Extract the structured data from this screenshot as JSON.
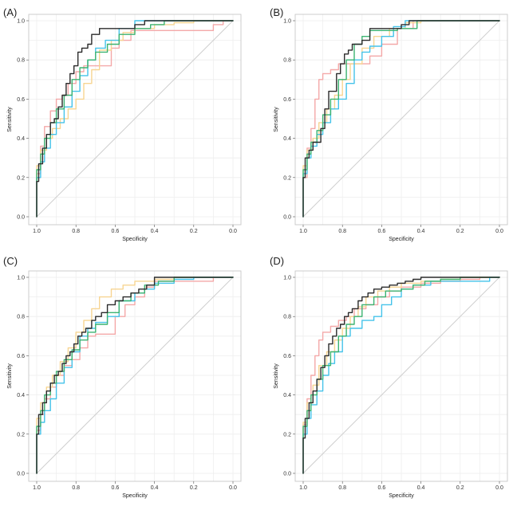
{
  "figure": {
    "colors": {
      "black": "#2b2b2b",
      "green": "#3cb371",
      "cyan": "#45c3ea",
      "pink": "#f4a8a8",
      "yellow": "#f7d592",
      "diagonal": "#cfcfcf"
    }
  },
  "chart_data": [
    {
      "panel_label": "(A)",
      "type": "line",
      "xlabel": "Specificity",
      "ylabel": "Sensitivity",
      "xlim": [
        1.0,
        0.0
      ],
      "ylim": [
        0.0,
        1.0
      ],
      "x_ticks": [
        "1.0",
        "0.8",
        "0.6",
        "0.4",
        "0.2",
        "0.0"
      ],
      "y_ticks": [
        "0.0",
        "0.2",
        "0.4",
        "0.6",
        "0.8",
        "1.0"
      ],
      "grid": true,
      "series": [
        {
          "name": "pink",
          "color": "#f4a8a8",
          "specificity": [
            1.0,
            0.98,
            0.96,
            0.93,
            0.9,
            0.87,
            0.84,
            0.8,
            0.76,
            0.72,
            0.68,
            0.62,
            0.58,
            0.52,
            0.4,
            0.3,
            0.2,
            0.1,
            0.05,
            0.0
          ],
          "sensitivity": [
            0.0,
            0.22,
            0.36,
            0.46,
            0.54,
            0.6,
            0.62,
            0.68,
            0.74,
            0.77,
            0.77,
            0.77,
            0.86,
            0.9,
            0.95,
            0.95,
            0.95,
            0.95,
            0.98,
            1.0
          ]
        },
        {
          "name": "yellow",
          "color": "#f7d592",
          "specificity": [
            1.0,
            0.98,
            0.95,
            0.92,
            0.88,
            0.84,
            0.8,
            0.76,
            0.72,
            0.68,
            0.62,
            0.56,
            0.5,
            0.4,
            0.3,
            0.2,
            0.1,
            0.0
          ],
          "sensitivity": [
            0.0,
            0.26,
            0.34,
            0.4,
            0.45,
            0.5,
            0.55,
            0.6,
            0.68,
            0.75,
            0.85,
            0.9,
            0.94,
            0.96,
            0.98,
            0.99,
            1.0,
            1.0
          ]
        },
        {
          "name": "cyan",
          "color": "#45c3ea",
          "specificity": [
            1.0,
            0.98,
            0.96,
            0.93,
            0.9,
            0.86,
            0.82,
            0.78,
            0.74,
            0.7,
            0.65,
            0.58,
            0.5,
            0.45,
            0.4,
            0.3,
            0.2,
            0.1,
            0.0
          ],
          "sensitivity": [
            0.0,
            0.2,
            0.28,
            0.35,
            0.42,
            0.48,
            0.56,
            0.64,
            0.72,
            0.8,
            0.86,
            0.9,
            0.96,
            1.0,
            1.0,
            1.0,
            1.0,
            1.0,
            1.0
          ]
        },
        {
          "name": "green",
          "color": "#3cb371",
          "specificity": [
            1.0,
            0.98,
            0.96,
            0.93,
            0.9,
            0.86,
            0.82,
            0.78,
            0.74,
            0.7,
            0.64,
            0.58,
            0.5,
            0.42,
            0.35,
            0.25,
            0.1,
            0.0
          ],
          "sensitivity": [
            0.0,
            0.24,
            0.32,
            0.4,
            0.48,
            0.55,
            0.62,
            0.7,
            0.76,
            0.8,
            0.84,
            0.88,
            0.93,
            0.96,
            0.98,
            1.0,
            1.0,
            1.0
          ]
        },
        {
          "name": "black",
          "color": "#2b2b2b",
          "specificity": [
            1.0,
            0.99,
            0.97,
            0.95,
            0.93,
            0.91,
            0.89,
            0.87,
            0.85,
            0.83,
            0.81,
            0.79,
            0.77,
            0.74,
            0.72,
            0.68,
            0.66,
            0.64,
            0.6,
            0.56,
            0.52,
            0.5,
            0.45,
            0.4,
            0.35,
            0.2,
            0.1,
            0.0
          ],
          "sensitivity": [
            0.0,
            0.18,
            0.27,
            0.35,
            0.42,
            0.48,
            0.5,
            0.56,
            0.62,
            0.68,
            0.73,
            0.77,
            0.84,
            0.86,
            0.88,
            0.93,
            0.96,
            0.96,
            0.96,
            0.96,
            0.96,
            0.96,
            0.98,
            1.0,
            1.0,
            1.0,
            1.0,
            1.0
          ]
        }
      ]
    },
    {
      "panel_label": "(B)",
      "type": "line",
      "xlabel": "Specificity",
      "ylabel": "Sensitivity",
      "xlim": [
        1.0,
        0.0
      ],
      "ylim": [
        0.0,
        1.0
      ],
      "x_ticks": [
        "1.0",
        "0.8",
        "0.6",
        "0.4",
        "0.2",
        "0.0"
      ],
      "y_ticks": [
        "0.0",
        "0.2",
        "0.4",
        "0.6",
        "0.8",
        "1.0"
      ],
      "grid": true,
      "series": [
        {
          "name": "pink",
          "color": "#f4a8a8",
          "specificity": [
            1.0,
            0.98,
            0.96,
            0.94,
            0.92,
            0.9,
            0.86,
            0.82,
            0.78,
            0.72,
            0.66,
            0.6,
            0.52,
            0.44,
            0.4,
            0.3,
            0.2,
            0.0
          ],
          "sensitivity": [
            0.0,
            0.2,
            0.35,
            0.45,
            0.6,
            0.7,
            0.73,
            0.75,
            0.78,
            0.78,
            0.78,
            0.82,
            0.88,
            0.96,
            1.0,
            1.0,
            1.0,
            1.0
          ]
        },
        {
          "name": "yellow",
          "color": "#f7d592",
          "specificity": [
            1.0,
            0.98,
            0.95,
            0.92,
            0.88,
            0.84,
            0.8,
            0.76,
            0.7,
            0.64,
            0.56,
            0.48,
            0.4,
            0.3,
            0.2,
            0.0
          ],
          "sensitivity": [
            0.0,
            0.26,
            0.34,
            0.4,
            0.48,
            0.55,
            0.62,
            0.7,
            0.78,
            0.86,
            0.92,
            0.96,
            0.99,
            1.0,
            1.0,
            1.0
          ]
        },
        {
          "name": "cyan",
          "color": "#45c3ea",
          "specificity": [
            1.0,
            0.98,
            0.96,
            0.93,
            0.9,
            0.86,
            0.82,
            0.78,
            0.74,
            0.7,
            0.66,
            0.6,
            0.54,
            0.48,
            0.44,
            0.35,
            0.2,
            0.0
          ],
          "sensitivity": [
            0.0,
            0.22,
            0.3,
            0.36,
            0.42,
            0.48,
            0.55,
            0.6,
            0.68,
            0.8,
            0.84,
            0.87,
            0.92,
            0.97,
            1.0,
            1.0,
            1.0,
            1.0
          ]
        },
        {
          "name": "green",
          "color": "#3cb371",
          "specificity": [
            1.0,
            0.98,
            0.96,
            0.93,
            0.9,
            0.86,
            0.82,
            0.78,
            0.74,
            0.7,
            0.66,
            0.6,
            0.52,
            0.42,
            0.3,
            0.2,
            0.0
          ],
          "sensitivity": [
            0.0,
            0.24,
            0.32,
            0.38,
            0.44,
            0.52,
            0.6,
            0.7,
            0.8,
            0.88,
            0.92,
            0.95,
            0.95,
            0.96,
            1.0,
            1.0,
            1.0
          ]
        },
        {
          "name": "black",
          "color": "#2b2b2b",
          "specificity": [
            1.0,
            0.99,
            0.97,
            0.95,
            0.93,
            0.91,
            0.89,
            0.87,
            0.85,
            0.83,
            0.81,
            0.79,
            0.77,
            0.75,
            0.73,
            0.7,
            0.66,
            0.62,
            0.58,
            0.54,
            0.5,
            0.46,
            0.4,
            0.3,
            0.2,
            0.0
          ],
          "sensitivity": [
            0.0,
            0.2,
            0.3,
            0.34,
            0.38,
            0.38,
            0.45,
            0.55,
            0.64,
            0.64,
            0.73,
            0.78,
            0.83,
            0.85,
            0.88,
            0.88,
            0.9,
            0.96,
            0.96,
            0.96,
            0.96,
            0.98,
            1.0,
            1.0,
            1.0,
            1.0
          ]
        }
      ]
    },
    {
      "panel_label": "(C)",
      "type": "line",
      "xlabel": "Specificity",
      "ylabel": "Sensitivity",
      "xlim": [
        1.0,
        0.0
      ],
      "ylim": [
        0.0,
        1.0
      ],
      "x_ticks": [
        "1.0",
        "0.8",
        "0.6",
        "0.4",
        "0.2",
        "0.0"
      ],
      "y_ticks": [
        "0.0",
        "0.2",
        "0.4",
        "0.6",
        "0.8",
        "1.0"
      ],
      "grid": true,
      "series": [
        {
          "name": "pink",
          "color": "#f4a8a8",
          "specificity": [
            1.0,
            0.98,
            0.96,
            0.93,
            0.9,
            0.86,
            0.82,
            0.78,
            0.74,
            0.7,
            0.66,
            0.6,
            0.55,
            0.5,
            0.45,
            0.4,
            0.36,
            0.3,
            0.2,
            0.1,
            0.05,
            0.0
          ],
          "sensitivity": [
            0.0,
            0.22,
            0.3,
            0.38,
            0.44,
            0.5,
            0.55,
            0.58,
            0.64,
            0.7,
            0.71,
            0.71,
            0.8,
            0.86,
            0.9,
            0.95,
            0.98,
            0.98,
            0.98,
            0.98,
            1.0,
            1.0
          ]
        },
        {
          "name": "yellow",
          "color": "#f7d592",
          "specificity": [
            1.0,
            0.98,
            0.95,
            0.92,
            0.88,
            0.84,
            0.8,
            0.76,
            0.72,
            0.68,
            0.62,
            0.56,
            0.5,
            0.4,
            0.3,
            0.2,
            0.1,
            0.0
          ],
          "sensitivity": [
            0.0,
            0.28,
            0.36,
            0.44,
            0.5,
            0.57,
            0.64,
            0.72,
            0.78,
            0.84,
            0.9,
            0.94,
            0.96,
            0.98,
            0.99,
            1.0,
            1.0,
            1.0
          ]
        },
        {
          "name": "cyan",
          "color": "#45c3ea",
          "specificity": [
            1.0,
            0.98,
            0.96,
            0.93,
            0.9,
            0.86,
            0.82,
            0.78,
            0.74,
            0.7,
            0.64,
            0.58,
            0.5,
            0.45,
            0.4,
            0.3,
            0.2,
            0.1,
            0.0
          ],
          "sensitivity": [
            0.0,
            0.2,
            0.26,
            0.32,
            0.38,
            0.46,
            0.54,
            0.62,
            0.7,
            0.74,
            0.77,
            0.8,
            0.88,
            0.92,
            0.94,
            0.97,
            0.99,
            1.0,
            1.0
          ]
        },
        {
          "name": "green",
          "color": "#3cb371",
          "specificity": [
            1.0,
            0.98,
            0.96,
            0.93,
            0.9,
            0.86,
            0.82,
            0.78,
            0.74,
            0.7,
            0.64,
            0.58,
            0.52,
            0.45,
            0.38,
            0.3,
            0.2,
            0.1,
            0.0
          ],
          "sensitivity": [
            0.0,
            0.24,
            0.32,
            0.4,
            0.46,
            0.52,
            0.58,
            0.63,
            0.68,
            0.72,
            0.76,
            0.82,
            0.88,
            0.92,
            0.96,
            0.98,
            1.0,
            1.0,
            1.0
          ]
        },
        {
          "name": "black",
          "color": "#2b2b2b",
          "specificity": [
            1.0,
            0.99,
            0.97,
            0.95,
            0.93,
            0.91,
            0.89,
            0.87,
            0.85,
            0.83,
            0.81,
            0.79,
            0.77,
            0.75,
            0.72,
            0.7,
            0.67,
            0.64,
            0.6,
            0.56,
            0.52,
            0.48,
            0.44,
            0.4,
            0.36,
            0.3,
            0.2,
            0.1,
            0.0
          ],
          "sensitivity": [
            0.0,
            0.2,
            0.3,
            0.36,
            0.42,
            0.46,
            0.5,
            0.52,
            0.56,
            0.6,
            0.62,
            0.66,
            0.7,
            0.72,
            0.74,
            0.78,
            0.8,
            0.82,
            0.86,
            0.88,
            0.9,
            0.92,
            0.94,
            0.96,
            1.0,
            1.0,
            1.0,
            1.0,
            1.0
          ]
        }
      ]
    },
    {
      "panel_label": "(D)",
      "type": "line",
      "xlabel": "Specificity",
      "ylabel": "Sensitivity",
      "xlim": [
        1.0,
        0.0
      ],
      "ylim": [
        0.0,
        1.0
      ],
      "x_ticks": [
        "1.0",
        "0.8",
        "0.6",
        "0.4",
        "0.2",
        "0.0"
      ],
      "y_ticks": [
        "0.0",
        "0.2",
        "0.4",
        "0.6",
        "0.8",
        "1.0"
      ],
      "grid": true,
      "series": [
        {
          "name": "pink",
          "color": "#f4a8a8",
          "specificity": [
            1.0,
            0.98,
            0.96,
            0.94,
            0.92,
            0.9,
            0.86,
            0.82,
            0.78,
            0.74,
            0.68,
            0.62,
            0.56,
            0.5,
            0.4,
            0.3,
            0.2,
            0.1,
            0.0
          ],
          "sensitivity": [
            0.0,
            0.25,
            0.38,
            0.5,
            0.6,
            0.68,
            0.72,
            0.75,
            0.78,
            0.8,
            0.84,
            0.86,
            0.9,
            0.93,
            0.95,
            0.97,
            0.98,
            0.99,
            1.0
          ]
        },
        {
          "name": "yellow",
          "color": "#f7d592",
          "specificity": [
            1.0,
            0.98,
            0.95,
            0.92,
            0.88,
            0.84,
            0.8,
            0.76,
            0.72,
            0.68,
            0.62,
            0.56,
            0.5,
            0.4,
            0.3,
            0.2,
            0.1,
            0.0
          ],
          "sensitivity": [
            0.0,
            0.26,
            0.36,
            0.45,
            0.55,
            0.62,
            0.68,
            0.74,
            0.8,
            0.85,
            0.9,
            0.93,
            0.95,
            0.97,
            0.98,
            0.99,
            1.0,
            1.0
          ]
        },
        {
          "name": "cyan",
          "color": "#45c3ea",
          "specificity": [
            1.0,
            0.98,
            0.96,
            0.93,
            0.9,
            0.87,
            0.84,
            0.8,
            0.76,
            0.7,
            0.64,
            0.6,
            0.55,
            0.5,
            0.44,
            0.35,
            0.25,
            0.15,
            0.05,
            0.0
          ],
          "sensitivity": [
            0.0,
            0.2,
            0.28,
            0.35,
            0.42,
            0.5,
            0.56,
            0.62,
            0.7,
            0.74,
            0.78,
            0.8,
            0.86,
            0.9,
            0.94,
            0.96,
            0.98,
            0.98,
            0.98,
            1.0
          ]
        },
        {
          "name": "green",
          "color": "#3cb371",
          "specificity": [
            1.0,
            0.98,
            0.96,
            0.93,
            0.9,
            0.86,
            0.82,
            0.78,
            0.74,
            0.7,
            0.64,
            0.58,
            0.5,
            0.44,
            0.38,
            0.3,
            0.2,
            0.1,
            0.0
          ],
          "sensitivity": [
            0.0,
            0.24,
            0.32,
            0.4,
            0.48,
            0.55,
            0.62,
            0.7,
            0.76,
            0.8,
            0.86,
            0.9,
            0.93,
            0.94,
            0.96,
            0.98,
            0.99,
            1.0,
            1.0
          ]
        },
        {
          "name": "black",
          "color": "#2b2b2b",
          "specificity": [
            1.0,
            0.99,
            0.97,
            0.95,
            0.93,
            0.91,
            0.89,
            0.87,
            0.85,
            0.83,
            0.81,
            0.79,
            0.77,
            0.75,
            0.72,
            0.7,
            0.67,
            0.64,
            0.6,
            0.56,
            0.52,
            0.48,
            0.44,
            0.4,
            0.3,
            0.2,
            0.1,
            0.0
          ],
          "sensitivity": [
            0.0,
            0.18,
            0.28,
            0.36,
            0.42,
            0.48,
            0.54,
            0.6,
            0.66,
            0.7,
            0.74,
            0.76,
            0.8,
            0.82,
            0.84,
            0.88,
            0.9,
            0.92,
            0.94,
            0.95,
            0.96,
            0.97,
            0.98,
            0.99,
            1.0,
            1.0,
            1.0,
            1.0
          ]
        }
      ]
    }
  ]
}
